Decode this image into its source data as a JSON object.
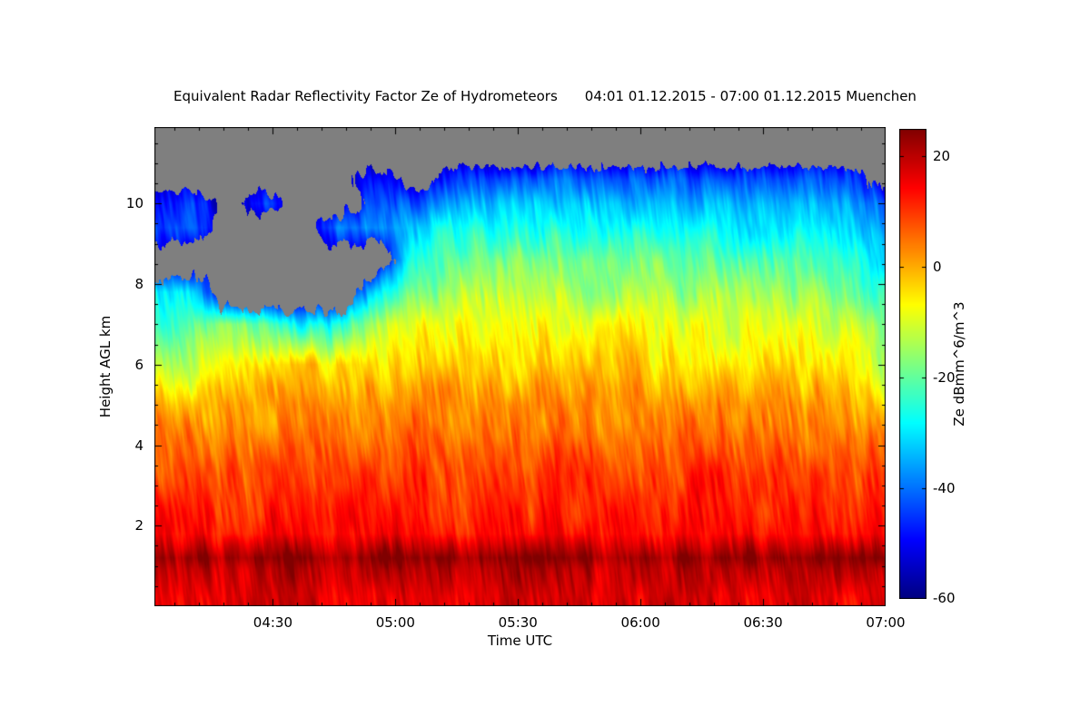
{
  "chart_data": {
    "type": "heatmap",
    "title": "Equivalent Radar Reflectivity Factor Ze of Hydrometeors",
    "subtitle": "04:01 01.12.2015 - 07:00 01.12.2015 Muenchen",
    "xlabel": "Time UTC",
    "ylabel": "Height AGL km",
    "colorbar_label": "Ze dBmm^6/m^3",
    "xlim": [
      4.0167,
      7.0
    ],
    "ylim": [
      0,
      11.9
    ],
    "x_minor_step": 0.1,
    "y_minor_step": 0.5,
    "x_ticks": [
      {
        "value": 4.5,
        "label": "04:30"
      },
      {
        "value": 5.0,
        "label": "05:00"
      },
      {
        "value": 5.5,
        "label": "05:30"
      },
      {
        "value": 6.0,
        "label": "06:00"
      },
      {
        "value": 6.5,
        "label": "06:30"
      },
      {
        "value": 7.0,
        "label": "07:00"
      }
    ],
    "y_ticks": [
      {
        "value": 2,
        "label": "2"
      },
      {
        "value": 4,
        "label": "4"
      },
      {
        "value": 6,
        "label": "6"
      },
      {
        "value": 8,
        "label": "8"
      },
      {
        "value": 10,
        "label": "10"
      }
    ],
    "colorbar": {
      "colormap": "jet",
      "vmin": -60,
      "vmax": 25,
      "nodata_color": "#7f7f7f",
      "ticks": [
        {
          "value": 20,
          "label": "20"
        },
        {
          "value": 0,
          "label": "0"
        },
        {
          "value": -20,
          "label": "-20"
        },
        {
          "value": -40,
          "label": "-40"
        },
        {
          "value": -60,
          "label": "-60"
        }
      ]
    },
    "grid": {
      "comment": "Coarse Ze grid in dB, rows = heights_km bottom-to-top, cols = times_hours; null = no signal (gray)",
      "times_hours": [
        4.02,
        4.17,
        4.32,
        4.47,
        4.62,
        4.77,
        4.92,
        5.07,
        5.22,
        5.37,
        5.52,
        5.67,
        5.82,
        5.97,
        6.12,
        6.27,
        6.42,
        6.57,
        6.72,
        6.87,
        7.0
      ],
      "heights_km": [
        0.25,
        0.9,
        1.2,
        1.8,
        2.5,
        3.3,
        4.2,
        5.0,
        6.0,
        7.0,
        7.8,
        8.6,
        9.4,
        10.0,
        10.6,
        11.2
      ],
      "values_db": [
        [
          17,
          16,
          16,
          17,
          18,
          16,
          17,
          18,
          16,
          17,
          18,
          17,
          16,
          17,
          16,
          17,
          16,
          17,
          18,
          16,
          17
        ],
        [
          20,
          19,
          19,
          20,
          21,
          19,
          20,
          21,
          20,
          20,
          21,
          20,
          19,
          20,
          19,
          20,
          20,
          19,
          21,
          19,
          20
        ],
        [
          23,
          22,
          22,
          23,
          24,
          22,
          23,
          24,
          23,
          23,
          24,
          23,
          22,
          23,
          22,
          23,
          23,
          22,
          24,
          22,
          23
        ],
        [
          13,
          13,
          12,
          13,
          14,
          13,
          13,
          14,
          13,
          14,
          13,
          14,
          13,
          14,
          13,
          14,
          13,
          13,
          14,
          13,
          13
        ],
        [
          11,
          11,
          10,
          11,
          12,
          11,
          11,
          12,
          11,
          12,
          11,
          12,
          11,
          12,
          11,
          12,
          11,
          11,
          12,
          11,
          11
        ],
        [
          8,
          9,
          8,
          9,
          10,
          9,
          9,
          10,
          9,
          10,
          9,
          10,
          9,
          10,
          9,
          10,
          9,
          9,
          10,
          9,
          9
        ],
        [
          4,
          5,
          4,
          5,
          6,
          5,
          5,
          6,
          5,
          6,
          5,
          6,
          5,
          6,
          5,
          6,
          5,
          5,
          6,
          5,
          2
        ],
        [
          0,
          -2,
          1,
          2,
          3,
          2,
          2,
          3,
          2,
          4,
          3,
          3,
          2,
          3,
          2,
          3,
          2,
          2,
          3,
          1,
          -6
        ],
        [
          -14,
          -12,
          -7,
          -5,
          -3,
          -4,
          -4,
          -3,
          -4,
          -2,
          -4,
          -3,
          -4,
          -3,
          -5,
          -4,
          -5,
          -4,
          -4,
          -6,
          -15
        ],
        [
          -24,
          -22,
          -18,
          -20,
          -30,
          -26,
          -14,
          -8,
          -8,
          -7,
          -8,
          -7,
          -8,
          -8,
          -9,
          -9,
          -10,
          -9,
          -9,
          -12,
          -20
        ],
        [
          -28,
          -32,
          null,
          null,
          null,
          null,
          -30,
          -18,
          -15,
          -14,
          -14,
          -13,
          -14,
          -14,
          -15,
          -15,
          -16,
          -15,
          -15,
          -18,
          -26
        ],
        [
          null,
          null,
          null,
          null,
          null,
          null,
          null,
          -26,
          -20,
          -18,
          -19,
          -18,
          -19,
          -19,
          -20,
          -20,
          -21,
          -20,
          -21,
          -24,
          -32
        ],
        [
          -45,
          -42,
          null,
          null,
          null,
          -40,
          -38,
          -34,
          -27,
          -26,
          -27,
          -26,
          -27,
          -27,
          -28,
          -28,
          -29,
          -29,
          -30,
          -32,
          -38
        ],
        [
          -48,
          -46,
          null,
          -46,
          null,
          null,
          -44,
          -44,
          -36,
          -33,
          -34,
          -32,
          -33,
          -33,
          -34,
          -34,
          -35,
          -35,
          -36,
          -38,
          -42
        ],
        [
          null,
          null,
          null,
          null,
          null,
          null,
          -48,
          null,
          -46,
          -42,
          -42,
          -40,
          -42,
          -41,
          -42,
          -42,
          -44,
          -43,
          -44,
          -46,
          null
        ],
        [
          null,
          null,
          null,
          null,
          null,
          null,
          null,
          null,
          null,
          null,
          null,
          null,
          null,
          null,
          null,
          null,
          null,
          null,
          null,
          null,
          null
        ]
      ]
    }
  }
}
